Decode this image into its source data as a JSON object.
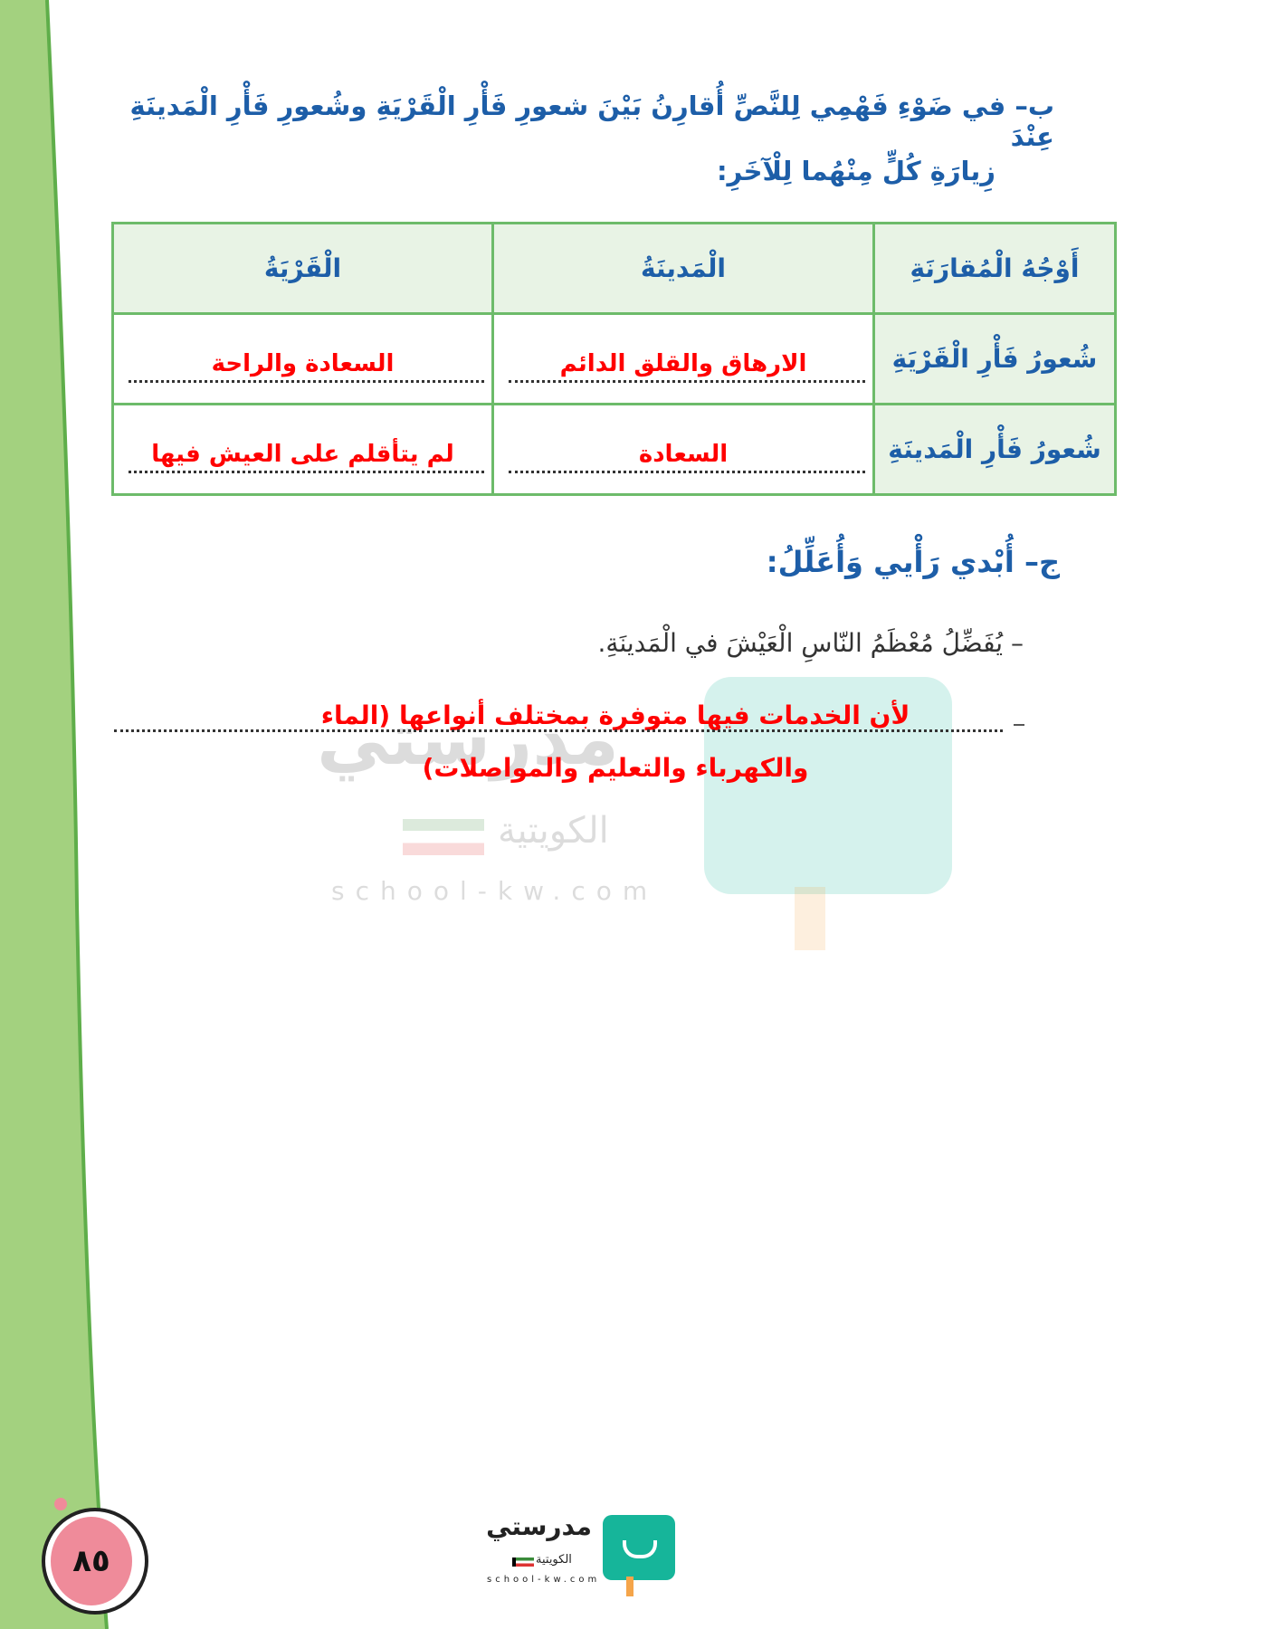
{
  "question_b": {
    "line1": "ب– في ضَوْءِ فَهْمِي لِلنَّصِّ أُقارِنُ بَيْنَ شعورِ فَأْرِ الْقَرْيَةِ وشُعورِ فَأْرِ الْمَدينَةِ عِنْدَ",
    "line2": "زِيارَةِ كُلٍّ مِنْهُما لِلْآخَرِ:"
  },
  "table": {
    "headers": [
      "أَوْجُهُ الْمُقارَنَةِ",
      "الْمَدينَةُ",
      "الْقَرْيَةُ"
    ],
    "rows": [
      {
        "label": "شُعورُ فَأْرِ الْقَرْيَةِ",
        "city": "الارهاق والقلق الدائم",
        "village": "السعادة والراحة"
      },
      {
        "label": "شُعورُ فَأْرِ الْمَدينَةِ",
        "city": "السعادة",
        "village": "لم يتأقلم على العيش فيها"
      }
    ]
  },
  "question_c": {
    "heading": "ج– أُبْدي رَأْيي وَأُعَلِّلُ:",
    "statement": "– يُفَضِّلُ مُعْظَمُ النّاسِ الْعَيْشَ في الْمَدينَةِ.",
    "answer_line1": "لأن الخدمات فيها متوفرة بمختلف أنواعها (الماء",
    "answer_line2": "والكهرباء والتعليم والمواصلات)"
  },
  "watermark": {
    "name": "مدرستي",
    "sub": "الكويتية",
    "url": "school-kw.com"
  },
  "footer": {
    "page_number": "٨٥",
    "logo_name": "مدرستي",
    "logo_sub": "الكويتية",
    "logo_url": "school-kw.com"
  },
  "colors": {
    "band": "#a3d17f",
    "table_border": "#6dbb6a",
    "header_bg": "#e8f3e5",
    "answer": "#ff0000",
    "text": "#1d5ea8",
    "page_circle": "#ef8b9a",
    "logo": "#16b59a"
  }
}
